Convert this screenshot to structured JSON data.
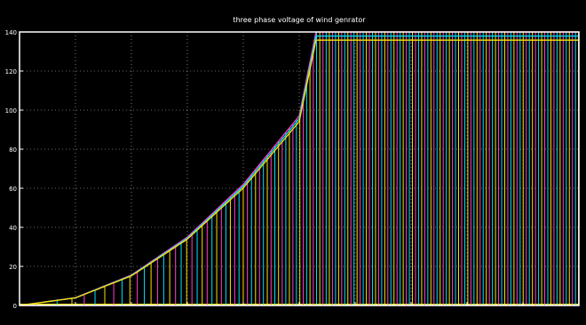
{
  "chart_data": {
    "type": "line",
    "title": "three phase voltage of wind genrator",
    "xlabel": "",
    "ylabel": "",
    "xlim": [
      0,
      10
    ],
    "ylim": [
      0,
      140
    ],
    "yticks": [
      "0",
      "20",
      "40",
      "60",
      "80",
      "100",
      "120",
      "140"
    ],
    "xticks": [
      "",
      "",
      "",
      "",
      "",
      "",
      "",
      "",
      "",
      "",
      ""
    ],
    "grid": true,
    "legend": "none",
    "envelope": {
      "description": "peak voltage rises quadratically then clips at 140",
      "x": [
        0,
        1,
        2,
        3,
        4,
        5,
        5.3,
        10
      ],
      "y": [
        0,
        4,
        15.6,
        35,
        62,
        97,
        140,
        140
      ]
    },
    "series": [
      {
        "color": "#ff3fd2"
      },
      {
        "color": "#00e0ff"
      },
      {
        "color": "#ffe000"
      }
    ],
    "background_color": "#000000",
    "axes_color": "#ffffff",
    "grid_color": "#d0d0d0"
  }
}
